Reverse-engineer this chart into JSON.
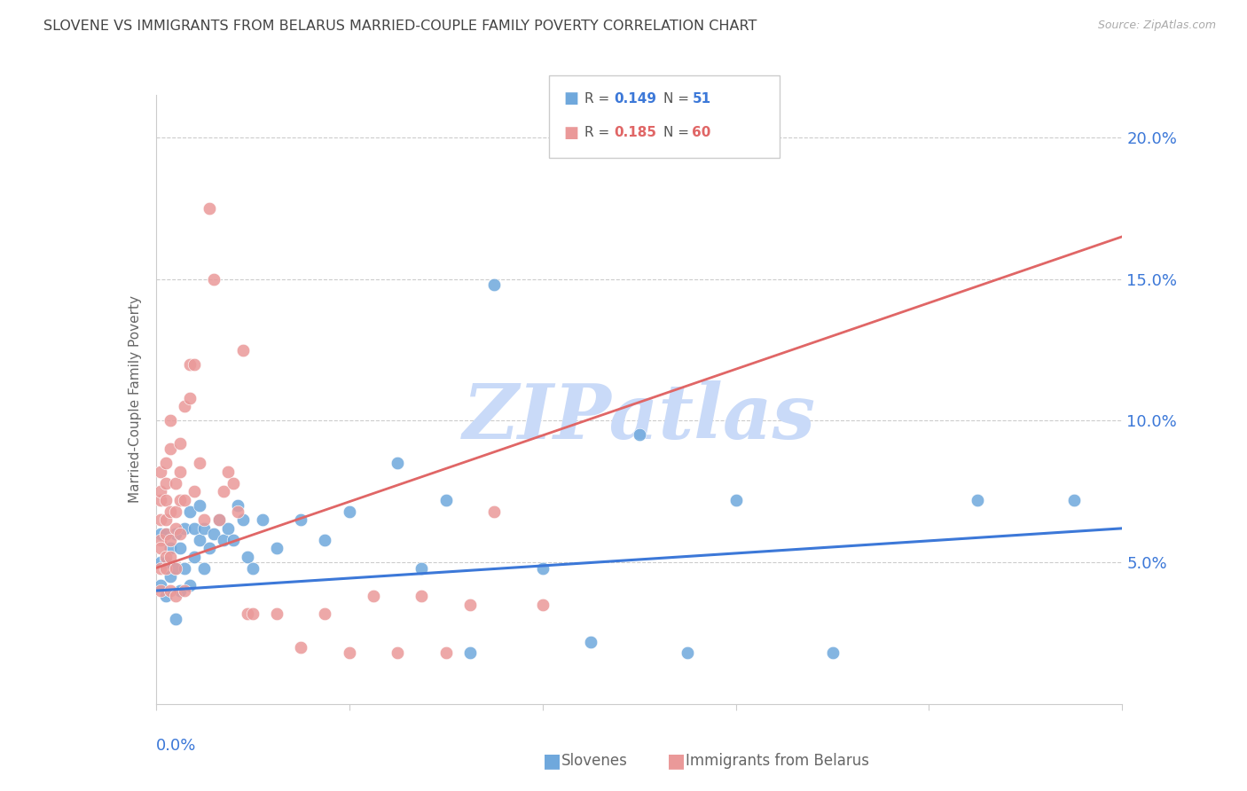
{
  "title": "SLOVENE VS IMMIGRANTS FROM BELARUS MARRIED-COUPLE FAMILY POVERTY CORRELATION CHART",
  "source": "Source: ZipAtlas.com",
  "ylabel": "Married-Couple Family Poverty",
  "ytick_labels": [
    "5.0%",
    "10.0%",
    "15.0%",
    "20.0%"
  ],
  "ytick_values": [
    0.05,
    0.1,
    0.15,
    0.2
  ],
  "legend_R1": "0.149",
  "legend_N1": "51",
  "legend_R2": "0.185",
  "legend_N2": "60",
  "blue_color": "#6fa8dc",
  "pink_color": "#ea9999",
  "blue_line_color": "#3c78d8",
  "pink_line_color": "#e06666",
  "axis_label_color": "#3c78d8",
  "title_color": "#444444",
  "grid_color": "#cccccc",
  "watermark_color": "#c9daf8",
  "slovenes_x": [
    0.001,
    0.001,
    0.001,
    0.002,
    0.002,
    0.002,
    0.003,
    0.003,
    0.004,
    0.004,
    0.004,
    0.005,
    0.005,
    0.006,
    0.006,
    0.007,
    0.007,
    0.008,
    0.008,
    0.009,
    0.009,
    0.01,
    0.01,
    0.011,
    0.012,
    0.013,
    0.014,
    0.015,
    0.016,
    0.017,
    0.018,
    0.019,
    0.02,
    0.022,
    0.025,
    0.03,
    0.035,
    0.04,
    0.05,
    0.055,
    0.06,
    0.065,
    0.07,
    0.08,
    0.09,
    0.1,
    0.11,
    0.12,
    0.14,
    0.17,
    0.19
  ],
  "slovenes_y": [
    0.042,
    0.05,
    0.06,
    0.038,
    0.05,
    0.06,
    0.045,
    0.055,
    0.03,
    0.048,
    0.06,
    0.04,
    0.055,
    0.048,
    0.062,
    0.042,
    0.068,
    0.052,
    0.062,
    0.058,
    0.07,
    0.048,
    0.062,
    0.055,
    0.06,
    0.065,
    0.058,
    0.062,
    0.058,
    0.07,
    0.065,
    0.052,
    0.048,
    0.065,
    0.055,
    0.065,
    0.058,
    0.068,
    0.085,
    0.048,
    0.072,
    0.018,
    0.148,
    0.048,
    0.022,
    0.095,
    0.018,
    0.072,
    0.018,
    0.072,
    0.072
  ],
  "belarus_x": [
    0.001,
    0.001,
    0.001,
    0.001,
    0.001,
    0.001,
    0.001,
    0.001,
    0.002,
    0.002,
    0.002,
    0.002,
    0.002,
    0.002,
    0.002,
    0.003,
    0.003,
    0.003,
    0.003,
    0.003,
    0.003,
    0.004,
    0.004,
    0.004,
    0.004,
    0.004,
    0.005,
    0.005,
    0.005,
    0.005,
    0.006,
    0.006,
    0.006,
    0.007,
    0.007,
    0.008,
    0.008,
    0.009,
    0.01,
    0.011,
    0.012,
    0.013,
    0.014,
    0.015,
    0.016,
    0.017,
    0.018,
    0.019,
    0.02,
    0.025,
    0.03,
    0.035,
    0.04,
    0.045,
    0.05,
    0.055,
    0.06,
    0.065,
    0.07,
    0.08
  ],
  "belarus_y": [
    0.072,
    0.065,
    0.058,
    0.075,
    0.082,
    0.055,
    0.048,
    0.04,
    0.072,
    0.06,
    0.052,
    0.048,
    0.065,
    0.078,
    0.085,
    0.058,
    0.068,
    0.052,
    0.09,
    0.1,
    0.04,
    0.062,
    0.078,
    0.068,
    0.048,
    0.038,
    0.072,
    0.06,
    0.082,
    0.092,
    0.072,
    0.105,
    0.04,
    0.108,
    0.12,
    0.075,
    0.12,
    0.085,
    0.065,
    0.175,
    0.15,
    0.065,
    0.075,
    0.082,
    0.078,
    0.068,
    0.125,
    0.032,
    0.032,
    0.032,
    0.02,
    0.032,
    0.018,
    0.038,
    0.018,
    0.038,
    0.018,
    0.035,
    0.068,
    0.035
  ],
  "xlim": [
    0.0,
    0.2
  ],
  "ylim": [
    0.0,
    0.215
  ],
  "blue_trend_x": [
    0.0,
    0.2
  ],
  "blue_trend_y": [
    0.04,
    0.062
  ],
  "pink_trend_x": [
    0.0,
    0.2
  ],
  "pink_trend_y": [
    0.048,
    0.165
  ]
}
